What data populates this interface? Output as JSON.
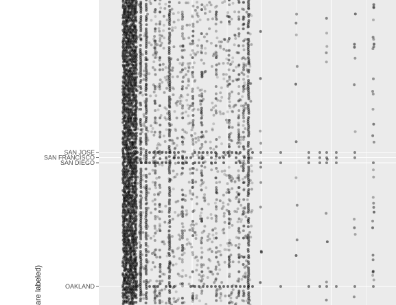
{
  "chart_data": {
    "type": "scatter",
    "ylabel": "are labeled)",
    "y_tick_labels": [
      "SAN JOSE",
      "SAN FRANCISCO",
      "SAN DIEGO",
      "OAKLAND"
    ],
    "colors": {
      "panel": "#ebebeb",
      "grid": "#ffffff",
      "point": "#000000",
      "text": "#4d4d4d"
    },
    "point_opacity": 0.25,
    "grid": true,
    "legend": "none"
  }
}
